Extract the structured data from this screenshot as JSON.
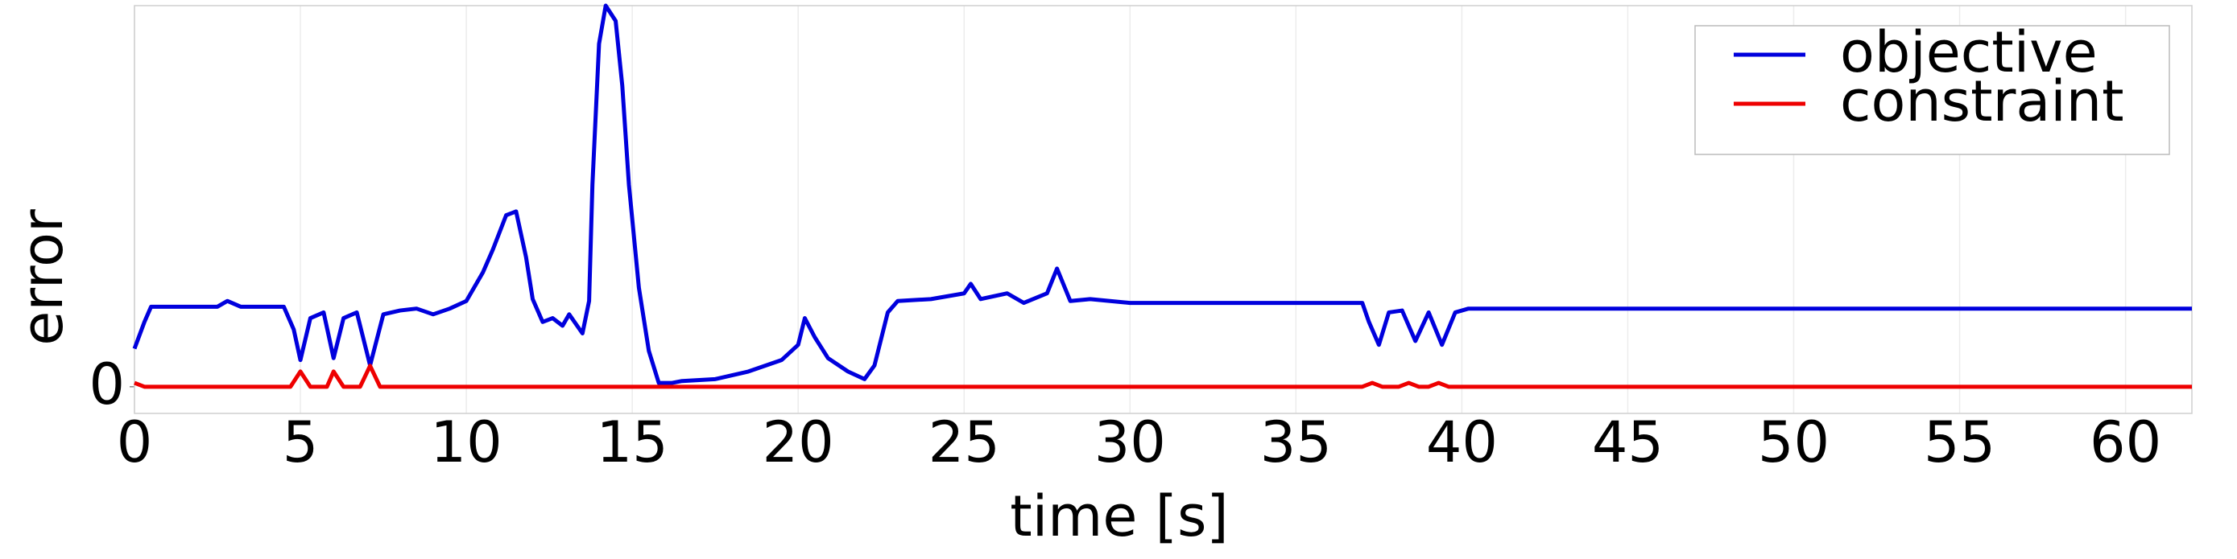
{
  "chart_data": {
    "type": "line",
    "xlabel": "time [s]",
    "ylabel": "error",
    "xlim": [
      0,
      62
    ],
    "xticks": [
      0,
      5,
      10,
      15,
      20,
      25,
      30,
      35,
      40,
      45,
      50,
      55,
      60
    ],
    "ylim": [
      -0.07,
      1.0
    ],
    "yticks": [
      0
    ],
    "grid": true,
    "legend": "upper right",
    "series": [
      {
        "name": "objective",
        "color": "#0000dd",
        "x": [
          0,
          0.3,
          0.5,
          1,
          2.5,
          2.8,
          3.2,
          4.5,
          4.8,
          5.0,
          5.3,
          5.7,
          6.0,
          6.3,
          6.7,
          7.1,
          7.5,
          8.0,
          8.5,
          9.0,
          9.5,
          10,
          10.5,
          10.8,
          11.2,
          11.5,
          11.8,
          12.0,
          12.3,
          12.6,
          12.9,
          13.1,
          13.5,
          13.7,
          13.8,
          14.0,
          14.2,
          14.5,
          14.7,
          14.9,
          15.2,
          15.5,
          15.8,
          16.2,
          16.5,
          17.5,
          18.5,
          19.5,
          20.0,
          20.2,
          20.5,
          20.9,
          21.5,
          22.0,
          22.3,
          22.7,
          23.0,
          24,
          25,
          25.2,
          25.5,
          26.3,
          26.8,
          27.5,
          27.8,
          28.2,
          28.8,
          30,
          37,
          37.2,
          37.5,
          37.8,
          38.2,
          38.6,
          39.0,
          39.4,
          39.8,
          40.2,
          62
        ],
        "values": [
          0.1,
          0.17,
          0.21,
          0.21,
          0.21,
          0.225,
          0.21,
          0.21,
          0.15,
          0.07,
          0.18,
          0.195,
          0.075,
          0.18,
          0.195,
          0.056,
          0.19,
          0.2,
          0.205,
          0.19,
          0.205,
          0.225,
          0.3,
          0.36,
          0.45,
          0.46,
          0.34,
          0.23,
          0.17,
          0.18,
          0.16,
          0.19,
          0.14,
          0.225,
          0.53,
          0.9,
          1.0,
          0.96,
          0.79,
          0.53,
          0.26,
          0.094,
          0.01,
          0.01,
          0.015,
          0.02,
          0.04,
          0.07,
          0.11,
          0.18,
          0.13,
          0.075,
          0.04,
          0.02,
          0.056,
          0.195,
          0.225,
          0.23,
          0.245,
          0.27,
          0.23,
          0.245,
          0.22,
          0.245,
          0.31,
          0.225,
          0.23,
          0.22,
          0.22,
          0.17,
          0.11,
          0.195,
          0.2,
          0.12,
          0.195,
          0.11,
          0.195,
          0.205,
          0.205
        ]
      },
      {
        "name": "constraint",
        "color": "#ee0000",
        "x": [
          0,
          0.3,
          4.7,
          5.0,
          5.3,
          5.8,
          6.0,
          6.3,
          6.8,
          7.1,
          7.4,
          37,
          37.3,
          37.6,
          38.1,
          38.4,
          38.7,
          39.0,
          39.3,
          39.6,
          62
        ],
        "values": [
          0.01,
          0,
          0,
          0.04,
          0,
          0,
          0.04,
          0,
          0,
          0.055,
          0,
          0,
          0.01,
          0,
          0,
          0.01,
          0,
          0,
          0.01,
          0,
          0
        ]
      }
    ]
  }
}
